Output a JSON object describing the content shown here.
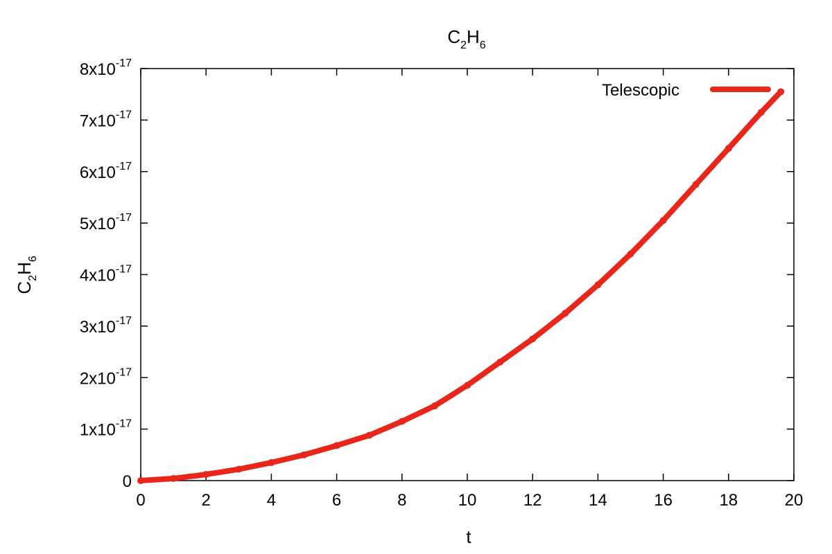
{
  "chart_data": {
    "type": "line",
    "title": {
      "base1": "C",
      "sub1": "2",
      "base2": "H",
      "sub2": "6"
    },
    "xlabel": "t",
    "ylabel": {
      "base1": "C",
      "sub1": "2",
      "base2": "H",
      "sub2": "6"
    },
    "xlim": [
      0,
      20
    ],
    "ylim": [
      0,
      8e-17
    ],
    "x_ticks": [
      {
        "value": 0,
        "label": "0"
      },
      {
        "value": 2,
        "label": "2"
      },
      {
        "value": 4,
        "label": "4"
      },
      {
        "value": 6,
        "label": "6"
      },
      {
        "value": 8,
        "label": "8"
      },
      {
        "value": 10,
        "label": "10"
      },
      {
        "value": 12,
        "label": "12"
      },
      {
        "value": 14,
        "label": "14"
      },
      {
        "value": 16,
        "label": "16"
      },
      {
        "value": 18,
        "label": "18"
      },
      {
        "value": 20,
        "label": "20"
      }
    ],
    "y_ticks": [
      {
        "value": 0,
        "mant": "0",
        "exp": ""
      },
      {
        "value": 1e-17,
        "mant": "1x10",
        "exp": "-17"
      },
      {
        "value": 2e-17,
        "mant": "2x10",
        "exp": "-17"
      },
      {
        "value": 3e-17,
        "mant": "3x10",
        "exp": "-17"
      },
      {
        "value": 4e-17,
        "mant": "4x10",
        "exp": "-17"
      },
      {
        "value": 5e-17,
        "mant": "5x10",
        "exp": "-17"
      },
      {
        "value": 6e-17,
        "mant": "6x10",
        "exp": "-17"
      },
      {
        "value": 7e-17,
        "mant": "7x10",
        "exp": "-17"
      },
      {
        "value": 8e-17,
        "mant": "8x10",
        "exp": "-17"
      }
    ],
    "grid": false,
    "legend_position": "top-right",
    "series": [
      {
        "name": "Telescopic",
        "color": "#e8261a",
        "x": [
          0,
          1,
          2,
          3,
          4,
          5,
          6,
          7,
          8,
          9,
          10,
          11,
          12,
          13,
          14,
          15,
          16,
          17,
          18,
          19,
          19.6
        ],
        "y": [
          0,
          4e-19,
          1.2e-18,
          2.2e-18,
          3.5e-18,
          5e-18,
          6.8e-18,
          8.8e-18,
          1.15e-17,
          1.45e-17,
          1.85e-17,
          2.3e-17,
          2.75e-17,
          3.25e-17,
          3.8e-17,
          4.4e-17,
          5.05e-17,
          5.75e-17,
          6.45e-17,
          7.15e-17,
          7.55e-17
        ]
      }
    ]
  }
}
